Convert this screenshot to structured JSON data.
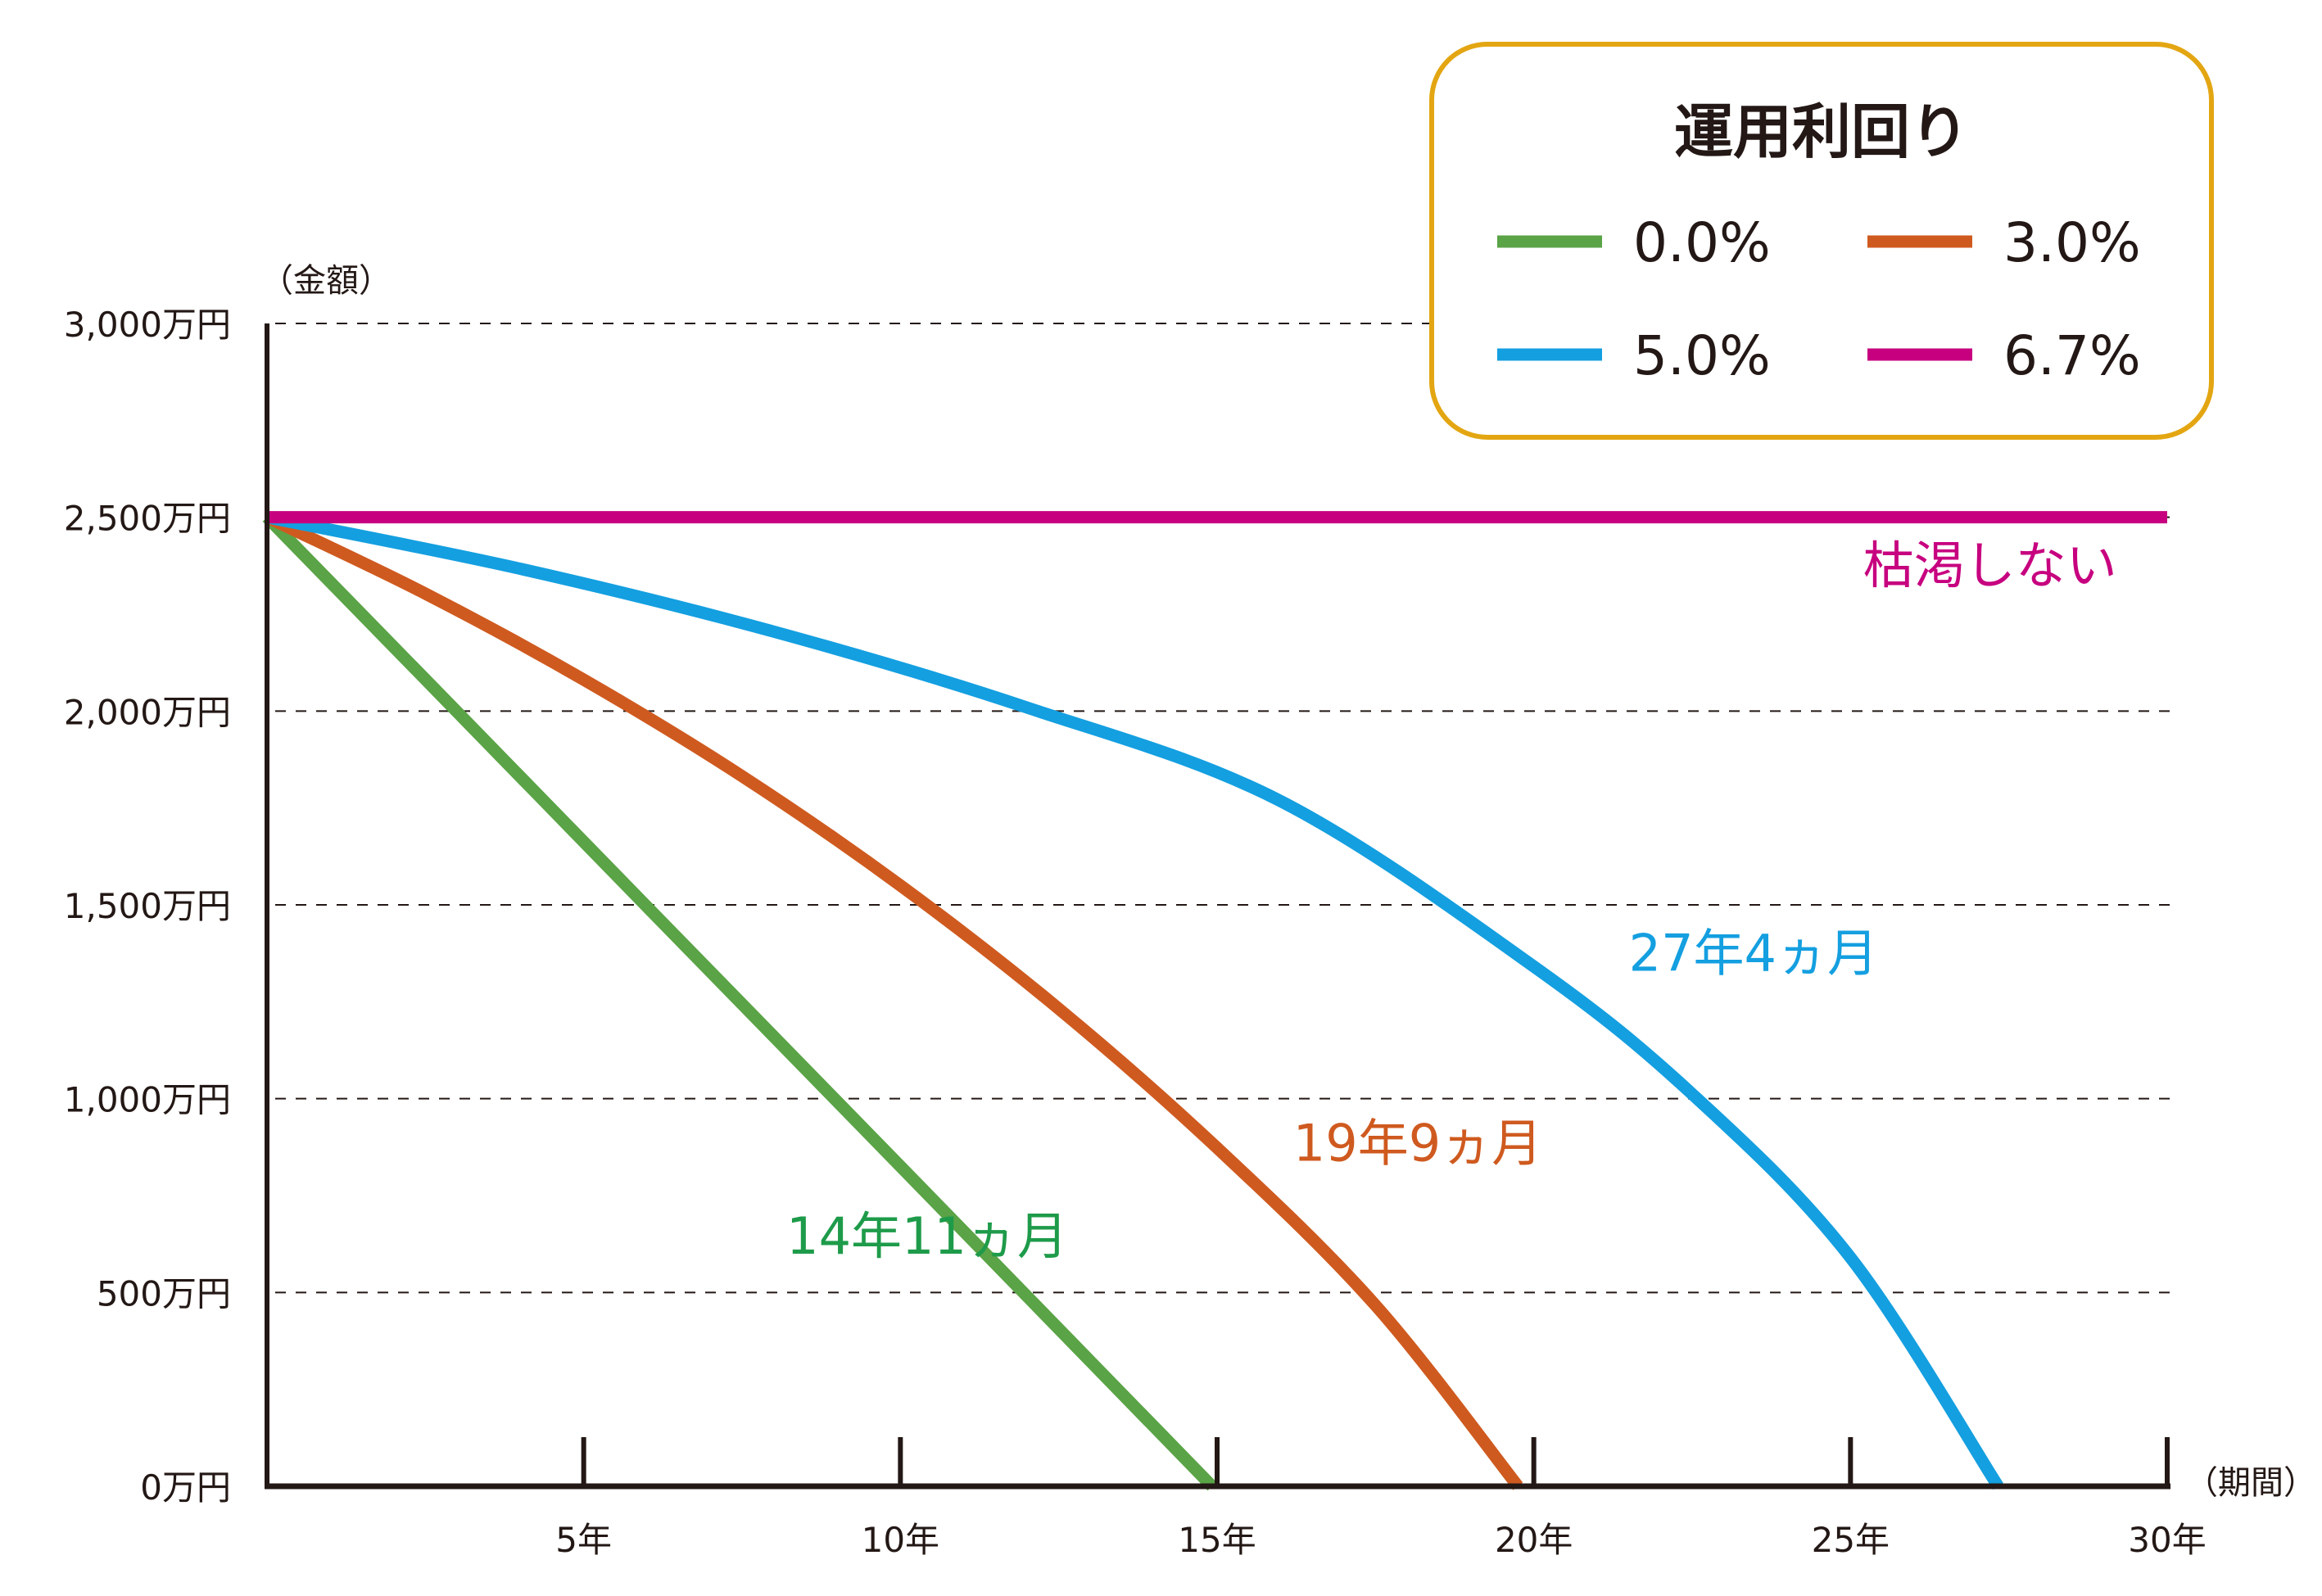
{
  "chart_data": {
    "type": "line",
    "y_unit_label": "（金額）",
    "x_unit_label": "（期間）",
    "ylim": [
      0,
      3000
    ],
    "xlim": [
      0,
      30
    ],
    "grid": true,
    "y_ticks": [
      {
        "value": 0,
        "label": "0万円"
      },
      {
        "value": 500,
        "label": "500万円"
      },
      {
        "value": 1000,
        "label": "1,000万円"
      },
      {
        "value": 1500,
        "label": "1,500万円"
      },
      {
        "value": 2000,
        "label": "2,000万円"
      },
      {
        "value": 2500,
        "label": "2,500万円"
      },
      {
        "value": 3000,
        "label": "3,000万円"
      }
    ],
    "x_ticks": [
      {
        "value": 5,
        "label": "5年"
      },
      {
        "value": 10,
        "label": "10年"
      },
      {
        "value": 15,
        "label": "15年"
      },
      {
        "value": 20,
        "label": "20年"
      },
      {
        "value": 25,
        "label": "25年"
      },
      {
        "value": 30,
        "label": "30年"
      }
    ],
    "legend": {
      "title": "運用利回り",
      "placement": "top-right"
    },
    "series": [
      {
        "name": "0.0%",
        "color": "#5aa346",
        "points": [
          [
            0,
            2500
          ],
          [
            3,
            1998
          ],
          [
            6,
            1495
          ],
          [
            9,
            993
          ],
          [
            12,
            490
          ],
          [
            14.92,
            0
          ]
        ]
      },
      {
        "name": "3.0%",
        "color": "#cf5a1f",
        "points": [
          [
            0,
            2500
          ],
          [
            2.5,
            2303
          ],
          [
            5,
            2081
          ],
          [
            7.5,
            1832
          ],
          [
            10,
            1550
          ],
          [
            12.5,
            1232
          ],
          [
            15,
            873
          ],
          [
            17.5,
            467
          ],
          [
            19.75,
            0
          ]
        ]
      },
      {
        "name": "5.0%",
        "color": "#149fe0",
        "points": [
          [
            0,
            2500
          ],
          [
            4,
            2367
          ],
          [
            8,
            2205
          ],
          [
            12,
            2009
          ],
          [
            16,
            1768
          ],
          [
            20,
            1341
          ],
          [
            22.5,
            1012
          ],
          [
            25,
            590
          ],
          [
            27.33,
            0
          ]
        ]
      },
      {
        "name": "6.7%",
        "color": "#c7007f",
        "points": [
          [
            0,
            2500
          ],
          [
            30,
            2500
          ]
        ]
      }
    ],
    "annotations": [
      {
        "text": "14年11ヵ月",
        "series": "0.0%",
        "x": 8.2,
        "y": 600
      },
      {
        "text": "19年9ヵ月",
        "series": "3.0%",
        "x": 16.2,
        "y": 840
      },
      {
        "text": "27年4ヵ月",
        "series": "5.0%",
        "x": 21.5,
        "y": 1330
      },
      {
        "text": "枯渇しない",
        "series": "6.7%",
        "x": 25.2,
        "y": 2330
      }
    ]
  }
}
